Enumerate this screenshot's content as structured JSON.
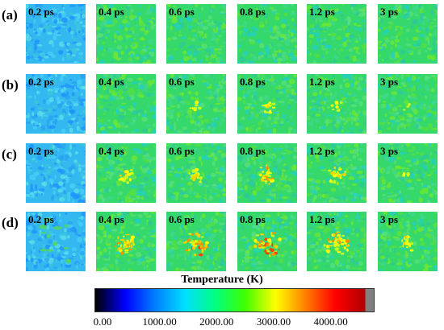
{
  "rows": [
    {
      "label": "(a)",
      "times": [
        "0.2 ps",
        "0.4 ps",
        "0.6 ps",
        "0.8 ps",
        "1.2 ps",
        "3 ps"
      ],
      "hotspot": [
        0,
        0,
        0,
        0,
        0,
        0
      ]
    },
    {
      "label": "(b)",
      "times": [
        "0.2 ps",
        "0.4 ps",
        "0.6 ps",
        "0.8 ps",
        "1.2 ps",
        "3 ps"
      ],
      "hotspot": [
        0,
        0,
        0.2,
        0.25,
        0.15,
        0.05
      ]
    },
    {
      "label": "(c)",
      "times": [
        "0.2 ps",
        "0.4 ps",
        "0.6 ps",
        "0.8 ps",
        "1.2 ps",
        "3 ps"
      ],
      "hotspot": [
        0,
        0.3,
        0.35,
        0.6,
        0.45,
        0.1
      ]
    },
    {
      "label": "(d)",
      "times": [
        "0.2 ps",
        "0.4 ps",
        "0.6 ps",
        "0.8 ps",
        "1.2 ps",
        "3 ps"
      ],
      "hotspot": [
        0.1,
        0.65,
        0.75,
        0.9,
        0.8,
        0.35
      ]
    }
  ],
  "colorbar": {
    "title": "Temperature (K)",
    "ticks": [
      "0.00",
      "1000.00",
      "2000.00",
      "3000.00",
      "4000.00"
    ],
    "colors": [
      "#000000",
      "#0000ff",
      "#0080ff",
      "#00e0ff",
      "#00ff80",
      "#40ff00",
      "#ffff00",
      "#ff8000",
      "#ff0000",
      "#b00000",
      "#808080"
    ]
  }
}
